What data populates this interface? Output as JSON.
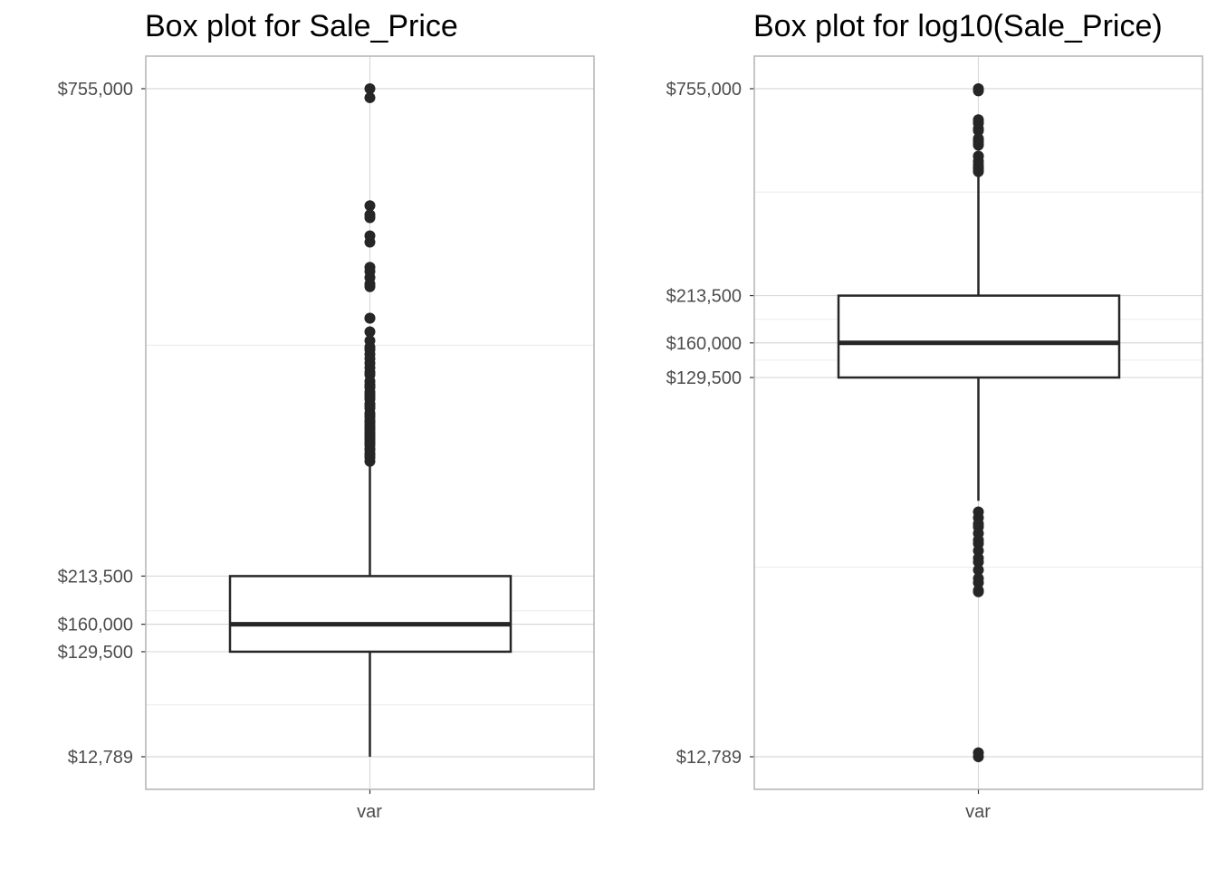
{
  "chart_data": [
    {
      "type": "box",
      "title": "Box plot for Sale_Price",
      "scale": "linear",
      "category": "var",
      "yticks": [
        12789,
        129500,
        160000,
        213500,
        755000
      ],
      "ytick_labels": [
        "$12,789",
        "$129,500",
        "$160,000",
        "$213,500",
        "$755,000"
      ],
      "minor_gridlines": [
        70500,
        175000,
        470000
      ],
      "grid": true,
      "box": {
        "min": 12789,
        "q1": 129500,
        "median": 160000,
        "q3": 213500,
        "whisker_low": 12789,
        "whisker_high": 339750
      },
      "outliers": [
        755000,
        745000,
        625000,
        615000,
        611657,
        591587,
        584500,
        556581,
        552000,
        545224,
        538000,
        535000,
        500067,
        500000,
        485000,
        475000,
        468000,
        465000,
        460000,
        455000,
        450000,
        445000,
        440000,
        437154,
        430000,
        426000,
        424870,
        423000,
        418000,
        415298,
        412500,
        410000,
        405000,
        402861,
        400000,
        394617,
        392500,
        390000,
        386250,
        385000,
        383970,
        381000,
        378500,
        377426,
        375000,
        372500,
        370878,
        369900,
        367294,
        365000,
        362500,
        360000,
        359100,
        355000,
        354000,
        350000,
        348000,
        345000,
        341000
      ]
    },
    {
      "type": "box",
      "title": "Box plot for log10(Sale_Price)",
      "scale": "log10",
      "category": "var",
      "yticks": [
        12789,
        129500,
        160000,
        213500,
        755000
      ],
      "ytick_labels": [
        "$12,789",
        "$129,500",
        "$160,000",
        "$213,500",
        "$755,000"
      ],
      "minor_gridlines": [
        40700,
        144000,
        184800,
        401800
      ],
      "grid": true,
      "box": {
        "min": 12789,
        "q1": 129500,
        "median": 160000,
        "q3": 213500,
        "whisker_low": 61000,
        "whisker_high": 446000
      },
      "outliers": [
        755000,
        745000,
        625000,
        615000,
        611657,
        591587,
        584500,
        556581,
        552000,
        545224,
        538000,
        535000,
        500067,
        500000,
        485000,
        475000,
        468000,
        465000,
        460000,
        455000,
        57000,
        55000,
        53000,
        52000,
        50000,
        48000,
        47000,
        45000,
        43000,
        42000,
        40000,
        38000,
        37000,
        35311,
        35000,
        13100,
        12789
      ]
    }
  ]
}
